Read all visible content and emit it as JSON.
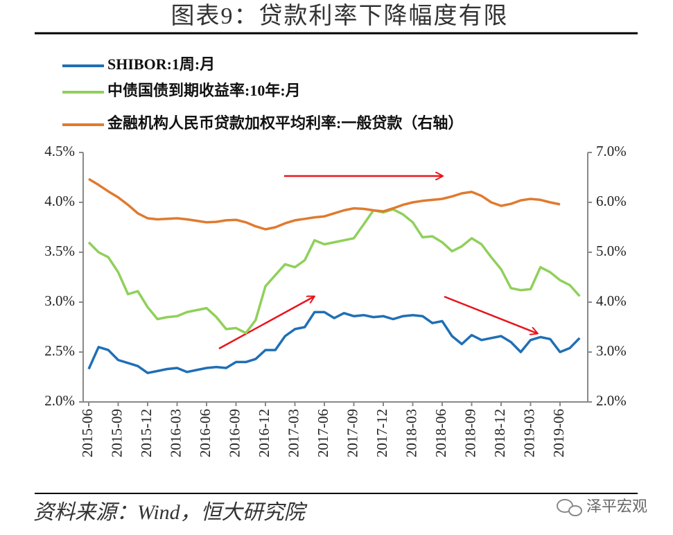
{
  "chart_data": {
    "type": "line",
    "title": "图表9：贷款利率下降幅度有限",
    "source": "资料来源：Wind，恒大研究院",
    "watermark": "泽平宏观",
    "categories": [
      "2015-06",
      null,
      null,
      "2015-09",
      null,
      null,
      "2015-12",
      null,
      null,
      "2016-03",
      null,
      null,
      "2016-06",
      null,
      null,
      "2016-09",
      null,
      null,
      "2016-12",
      null,
      null,
      "2017-03",
      null,
      null,
      "2017-06",
      null,
      null,
      "2017-09",
      null,
      null,
      "2017-12",
      null,
      null,
      "2018-03",
      null,
      null,
      "2018-06",
      null,
      null,
      "2018-09",
      null,
      null,
      "2018-12",
      null,
      null,
      "2019-03",
      null,
      null,
      "2019-06",
      null,
      null
    ],
    "ylim": [
      2.0,
      4.5
    ],
    "yticks": [
      {
        "value": 2.0,
        "label": "2.0%"
      },
      {
        "value": 2.5,
        "label": "2.5%"
      },
      {
        "value": 3.0,
        "label": "3.0%"
      },
      {
        "value": 3.5,
        "label": "3.5%"
      },
      {
        "value": 4.0,
        "label": "4.0%"
      },
      {
        "value": 4.5,
        "label": "4.5%"
      }
    ],
    "y2lim": [
      2.0,
      7.0
    ],
    "y2ticks": [
      {
        "value": 2.0,
        "label": "2.0%"
      },
      {
        "value": 3.0,
        "label": "3.0%"
      },
      {
        "value": 4.0,
        "label": "4.0%"
      },
      {
        "value": 5.0,
        "label": "5.0%"
      },
      {
        "value": 6.0,
        "label": "6.0%"
      },
      {
        "value": 7.0,
        "label": "7.0%"
      }
    ],
    "grid": false,
    "series": [
      {
        "name": "SHIBOR:1周:月",
        "color": "#1f6fb5",
        "values": [
          2.33,
          2.55,
          2.52,
          2.42,
          2.39,
          2.36,
          2.29,
          2.31,
          2.33,
          2.34,
          2.3,
          2.32,
          2.34,
          2.35,
          2.34,
          2.4,
          2.4,
          2.43,
          2.52,
          2.52,
          2.66,
          2.73,
          2.75,
          2.9,
          2.9,
          2.84,
          2.89,
          2.86,
          2.87,
          2.85,
          2.86,
          2.83,
          2.86,
          2.87,
          2.86,
          2.79,
          2.81,
          2.66,
          2.58,
          2.67,
          2.62,
          2.64,
          2.66,
          2.6,
          2.5,
          2.62,
          2.65,
          2.63,
          2.5,
          2.54,
          2.64
        ]
      },
      {
        "name": "中债国债到期收益率:10年:月",
        "color": "#8fd05a",
        "values": [
          3.6,
          3.5,
          3.45,
          3.3,
          3.08,
          3.11,
          2.95,
          2.83,
          2.85,
          2.86,
          2.9,
          2.92,
          2.94,
          2.85,
          2.73,
          2.74,
          2.69,
          2.82,
          3.16,
          3.27,
          3.38,
          3.35,
          3.42,
          3.62,
          3.58,
          3.6,
          3.62,
          3.64,
          3.78,
          3.92,
          3.9,
          3.93,
          3.88,
          3.8,
          3.65,
          3.66,
          3.6,
          3.51,
          3.56,
          3.64,
          3.58,
          3.45,
          3.33,
          3.14,
          3.12,
          3.13,
          3.35,
          3.3,
          3.22,
          3.17,
          3.06
        ]
      },
      {
        "name": "金融机构人民币贷款加权平均利率:一般贷款（右轴）",
        "color": "#e07a2e",
        "axis": "y2",
        "values": [
          6.47,
          6.35,
          6.22,
          6.1,
          5.95,
          5.78,
          5.68,
          5.66,
          5.67,
          5.68,
          5.66,
          5.63,
          5.6,
          5.61,
          5.64,
          5.65,
          5.6,
          5.52,
          5.46,
          5.5,
          5.58,
          5.64,
          5.67,
          5.7,
          5.72,
          5.78,
          5.84,
          5.88,
          5.87,
          5.84,
          5.82,
          5.88,
          5.95,
          6.0,
          6.03,
          6.05,
          6.07,
          6.12,
          6.18,
          6.21,
          6.13,
          6.0,
          5.93,
          5.97,
          6.04,
          6.07,
          6.05,
          6.0,
          5.96,
          null,
          null
        ]
      }
    ]
  }
}
